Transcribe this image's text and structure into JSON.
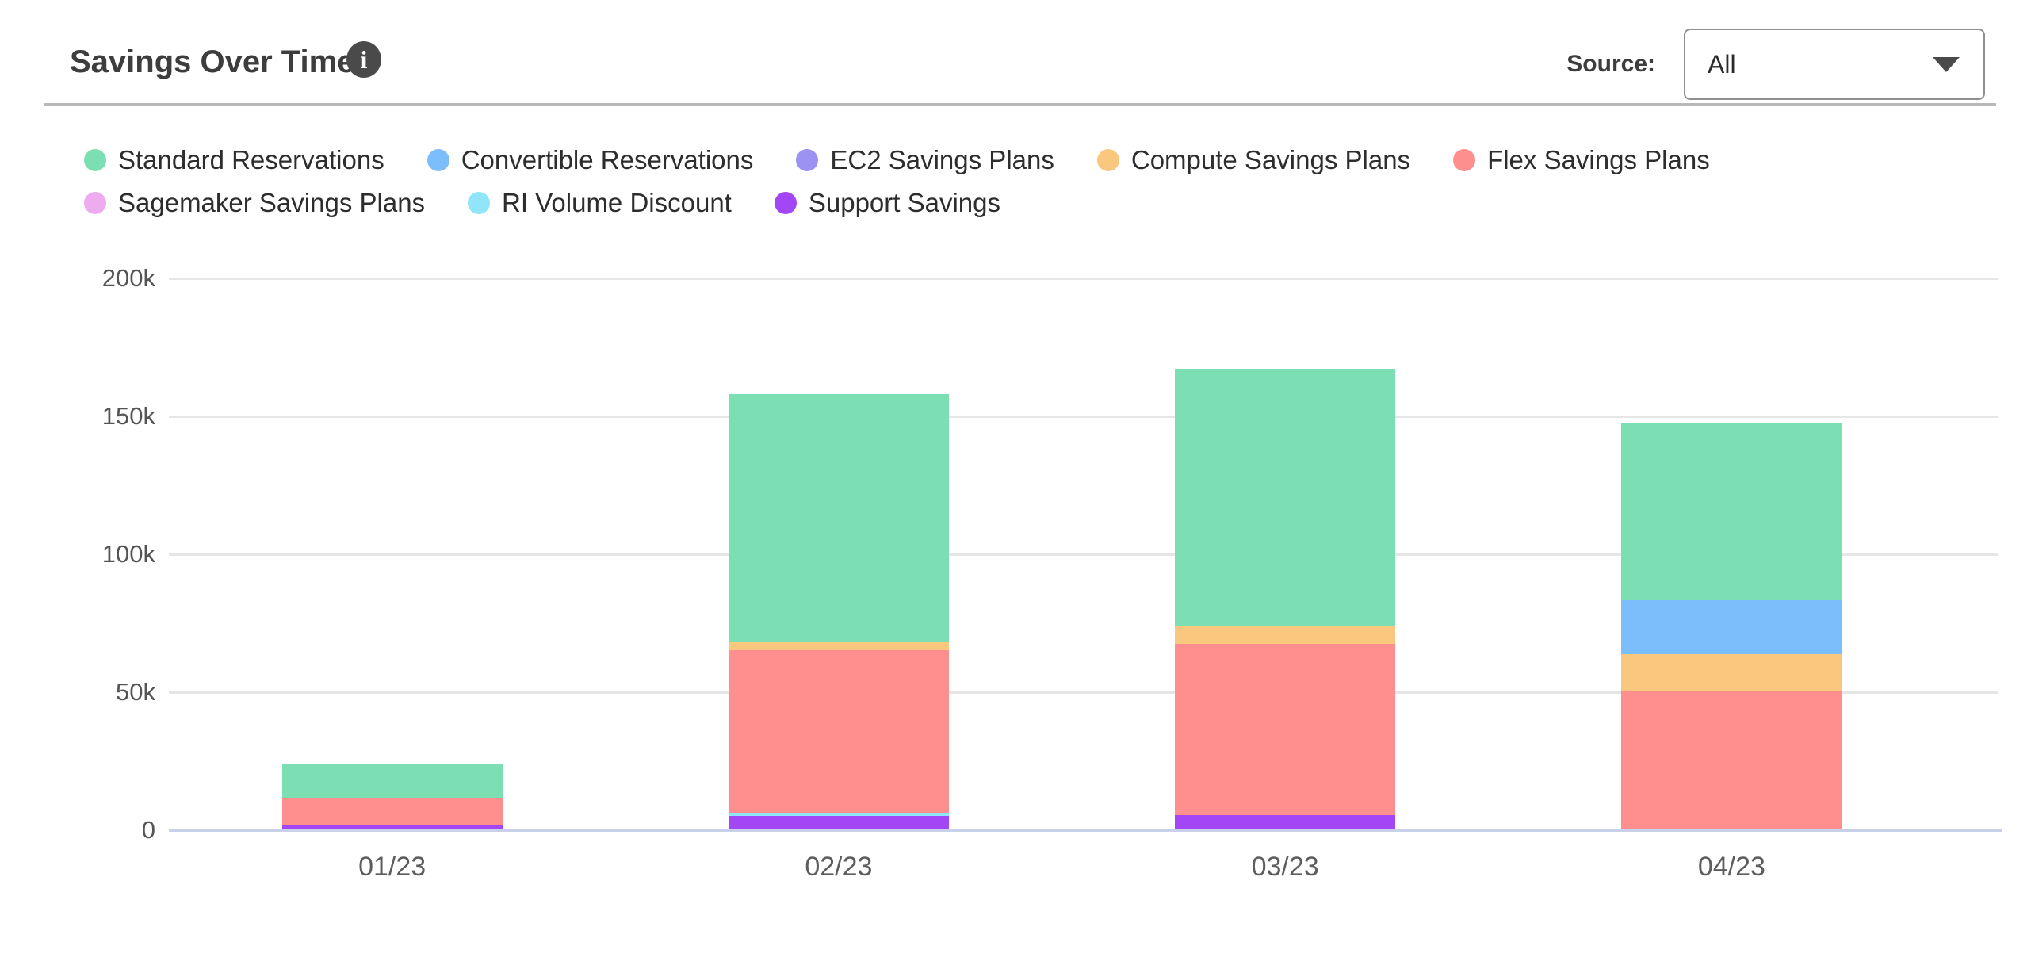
{
  "header": {
    "title": "Savings Over Time",
    "info_icon": "i",
    "source_label": "Source:",
    "source_value": "All",
    "source_options_visible": [
      "All"
    ]
  },
  "colors": {
    "standard_reservations": "#7cdfb4",
    "convertible_reservations": "#7cbdfb",
    "ec2_savings_plans": "#9c92f3",
    "compute_savings_plans": "#f9c77d",
    "flex_savings_plans": "#ff8e8e",
    "sagemaker_savings_plans": "#efabf0",
    "ri_volume_discount": "#90e6f8",
    "support_savings": "#a347f6",
    "gridline": "#e6e6e6",
    "axis_line": "#c9d0ea"
  },
  "legend": {
    "items": [
      {
        "label": "Standard Reservations",
        "color": "#7cdfb4"
      },
      {
        "label": "Convertible Reservations",
        "color": "#7cbdfb"
      },
      {
        "label": "EC2 Savings Plans",
        "color": "#9c92f3"
      },
      {
        "label": "Compute Savings Plans",
        "color": "#f9c77d"
      },
      {
        "label": "Flex Savings Plans",
        "color": "#ff8e8e"
      },
      {
        "label": "Sagemaker Savings Plans",
        "color": "#efabf0"
      },
      {
        "label": "RI Volume Discount",
        "color": "#90e6f8"
      },
      {
        "label": "Support Savings",
        "color": "#a347f6"
      }
    ]
  },
  "chart_data": {
    "type": "bar",
    "variant": "stacked",
    "title": "Savings Over Time",
    "xlabel": "",
    "ylabel": "",
    "categories": [
      "01/23",
      "02/23",
      "03/23",
      "04/23"
    ],
    "ylim": [
      0,
      200000
    ],
    "yticks": [
      0,
      50000,
      100000,
      150000,
      200000
    ],
    "ytick_labels": [
      "0",
      "50k",
      "100k",
      "150k",
      "200k"
    ],
    "grid": true,
    "legend_position": "top",
    "stack_order_note": "series listed bottom to top of stack",
    "series": [
      {
        "name": "Support Savings",
        "color": "#a347f6",
        "values": [
          1300,
          4500,
          5500,
          0
        ]
      },
      {
        "name": "RI Volume Discount",
        "color": "#90e6f8",
        "values": [
          0,
          1200,
          0,
          0
        ]
      },
      {
        "name": "Flex Savings Plans",
        "color": "#ff8e8e",
        "values": [
          10000,
          59000,
          62000,
          50000
        ]
      },
      {
        "name": "Compute Savings Plans",
        "color": "#f9c77d",
        "values": [
          0,
          3000,
          6500,
          13500
        ]
      },
      {
        "name": "Convertible Reservations",
        "color": "#7cbdfb",
        "values": [
          0,
          0,
          0,
          19500
        ]
      },
      {
        "name": "EC2 Savings Plans",
        "color": "#9c92f3",
        "values": [
          0,
          0,
          0,
          0
        ]
      },
      {
        "name": "Sagemaker Savings Plans",
        "color": "#efabf0",
        "values": [
          0,
          0,
          0,
          0
        ]
      },
      {
        "name": "Standard Reservations",
        "color": "#7cdfb4",
        "values": [
          12200,
          90000,
          93000,
          64000
        ]
      }
    ],
    "totals": [
      23500,
      157700,
      167000,
      147000
    ]
  }
}
